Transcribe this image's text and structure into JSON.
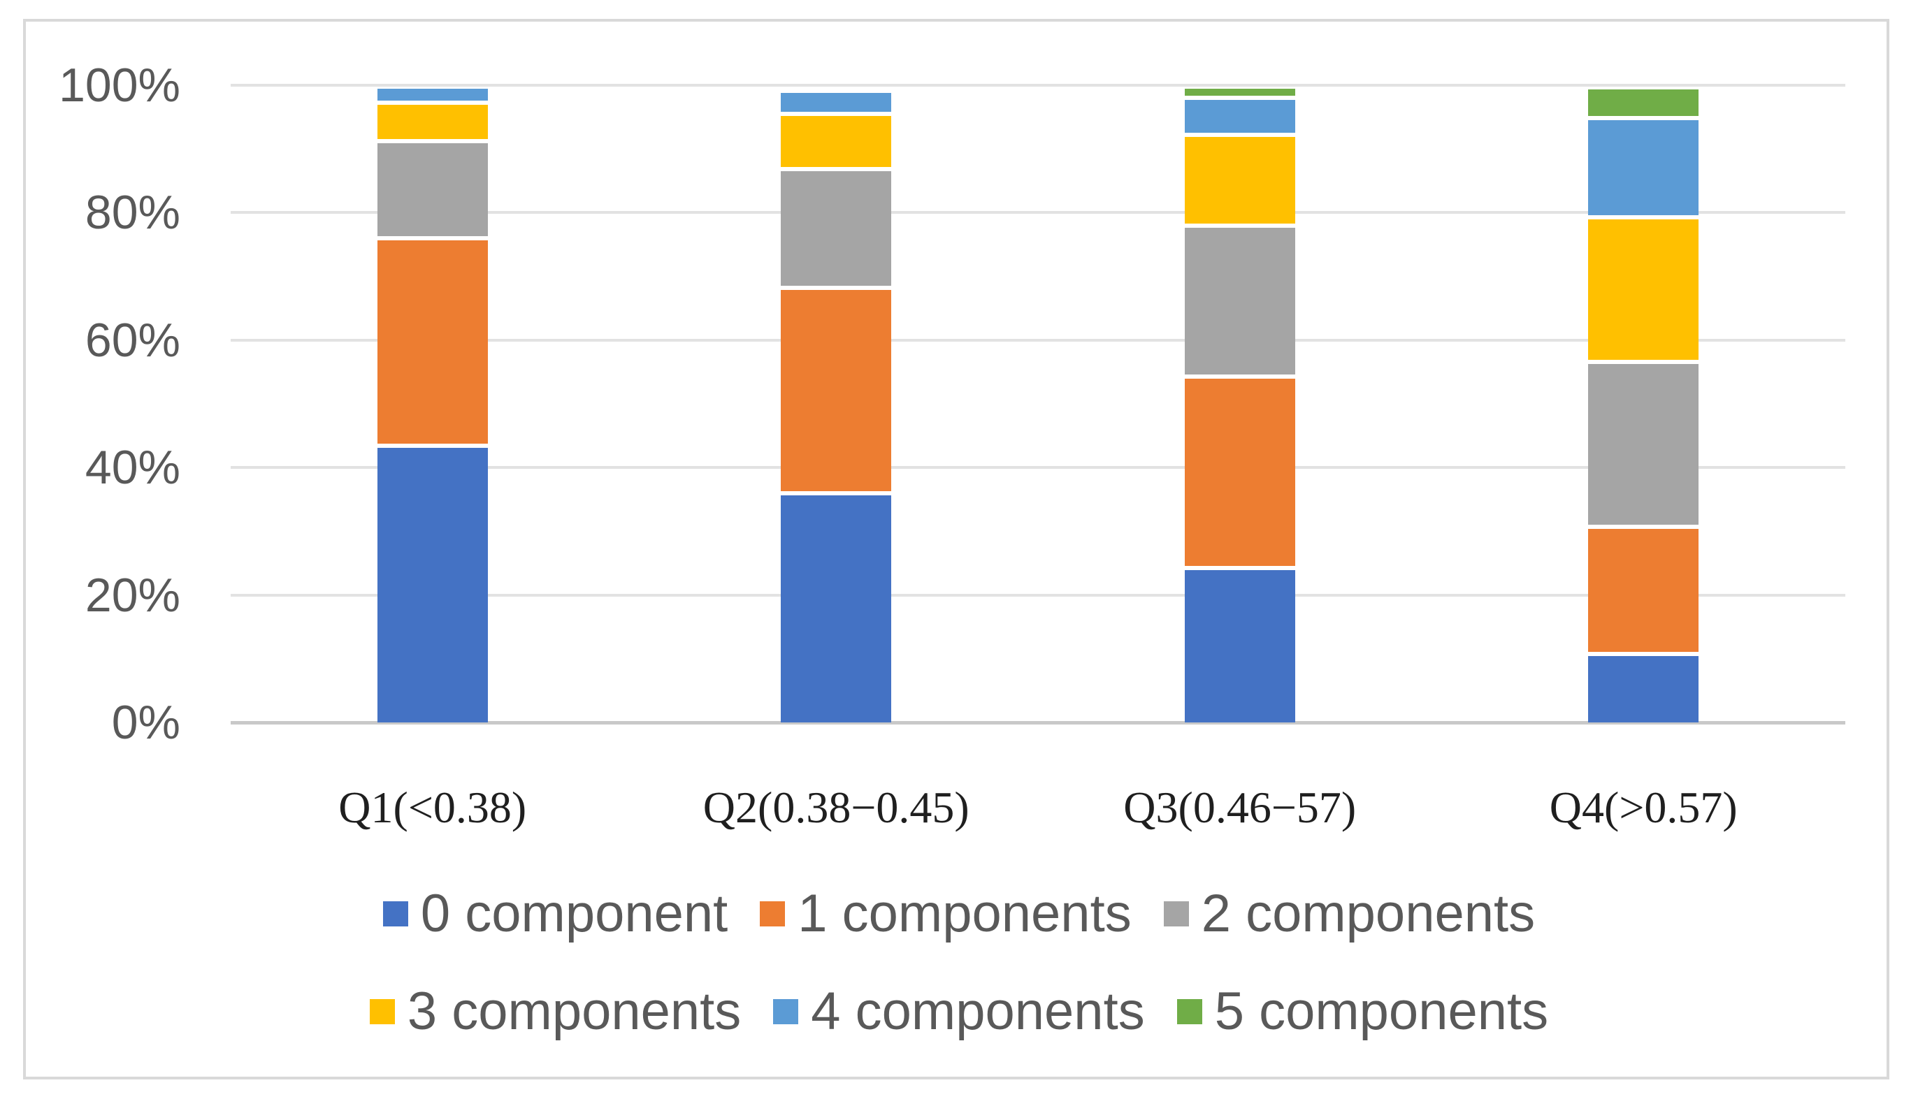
{
  "figure": {
    "description": "100% stacked column chart of number of components by quartile",
    "background_color": "#FFFFFF",
    "frame_border_color": "#D9D9D9"
  },
  "styles": {
    "gridline_color": "#E2E2E2",
    "axis_line_color": "#C9C9C9",
    "tick_text_color": "#595959",
    "category_text_color": "#1F1F1F",
    "legend_text_color": "#595959",
    "segment_gap_color": "#FFFFFF"
  },
  "chart_data": {
    "type": "bar",
    "stacked": true,
    "stack_unit": "percent",
    "title": "",
    "xlabel": "",
    "ylabel": "",
    "ylim": [
      0,
      100
    ],
    "grid": "horizontal",
    "legend_position": "bottom",
    "categories": [
      "Q1(<0.38)",
      "Q2(0.38−0.45)",
      "Q3(0.46−57)",
      "Q4(>0.57)"
    ],
    "series": [
      {
        "name": "0 component",
        "color": "#4472C4",
        "values": [
          43.7,
          36.3,
          24.6,
          11.1
        ]
      },
      {
        "name": "1 components",
        "color": "#ED7D31",
        "values": [
          32.6,
          32.2,
          30.0,
          19.9
        ]
      },
      {
        "name": "2 components",
        "color": "#A5A5A5",
        "values": [
          15.3,
          18.7,
          23.7,
          25.9
        ]
      },
      {
        "name": "3 components",
        "color": "#FFC000",
        "values": [
          6.0,
          8.6,
          14.2,
          22.7
        ]
      },
      {
        "name": "4 components",
        "color": "#5B9BD5",
        "values": [
          1.9,
          3.0,
          5.9,
          15.6
        ]
      },
      {
        "name": "5 components",
        "color": "#70AD47",
        "values": [
          0,
          0,
          1.1,
          4.1
        ]
      }
    ],
    "y_ticks": [
      {
        "label": "0%",
        "value": 0
      },
      {
        "label": "20%",
        "value": 20
      },
      {
        "label": "40%",
        "value": 40
      },
      {
        "label": "60%",
        "value": 60
      },
      {
        "label": "80%",
        "value": 80
      },
      {
        "label": "100%",
        "value": 100
      }
    ],
    "legend_rows": [
      [
        "0 component",
        "1 components",
        "2 components"
      ],
      [
        "3 components",
        "4 components",
        "5 components"
      ]
    ]
  }
}
